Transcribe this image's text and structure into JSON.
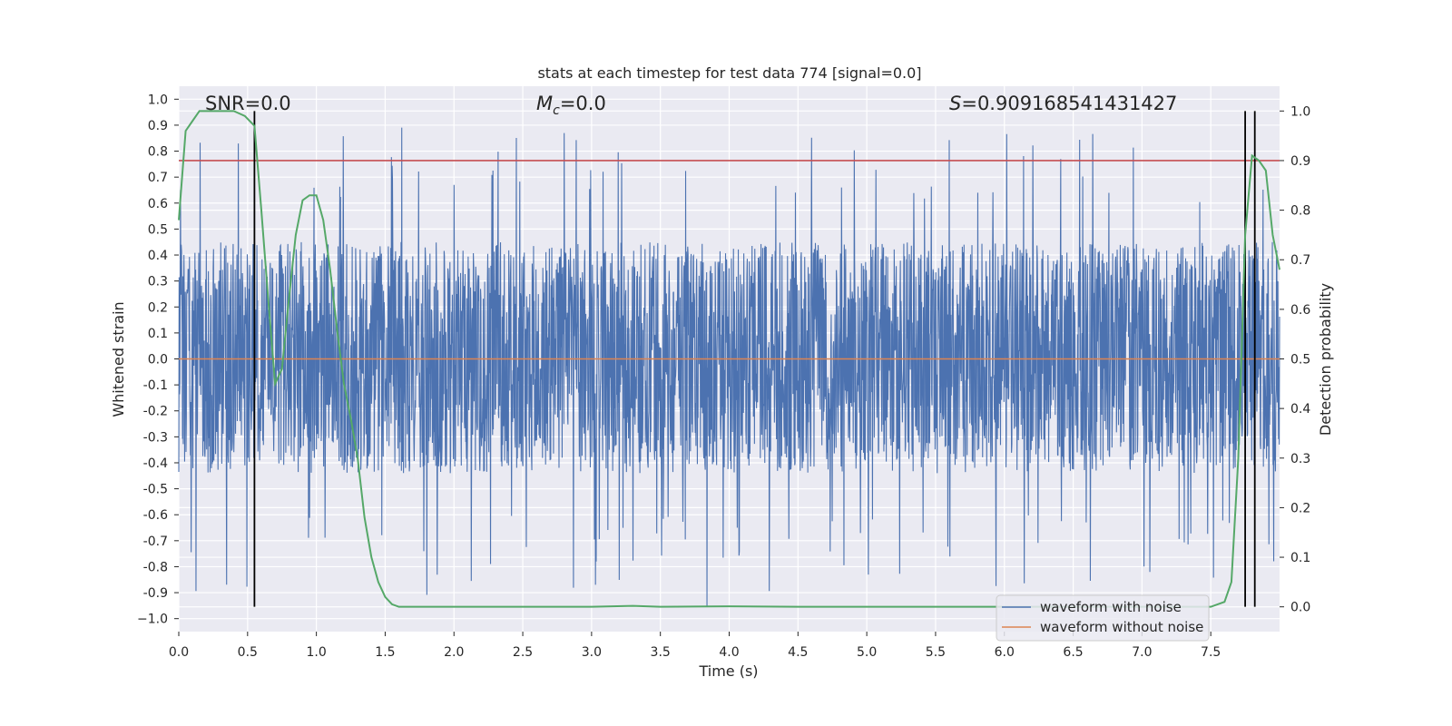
{
  "chart_data": {
    "type": "line",
    "title": "stats at each timestep for test data 774 [signal=0.0]",
    "xlabel": "Time (s)",
    "ylabel": "Whitened strain",
    "y2label": "Detection probability",
    "xlim": [
      0.0,
      8.0
    ],
    "ylim": [
      -1.05,
      1.05
    ],
    "y2lim": [
      -0.05,
      1.05
    ],
    "x_ticks": [
      "0.0",
      "0.5",
      "1.0",
      "1.5",
      "2.0",
      "2.5",
      "3.0",
      "3.5",
      "4.0",
      "4.5",
      "5.0",
      "5.5",
      "6.0",
      "6.5",
      "7.0",
      "7.5"
    ],
    "x_tick_values": [
      0.0,
      0.5,
      1.0,
      1.5,
      2.0,
      2.5,
      3.0,
      3.5,
      4.0,
      4.5,
      5.0,
      5.5,
      6.0,
      6.5,
      7.0,
      7.5
    ],
    "y_ticks": [
      "1.0",
      "0.9",
      "0.8",
      "0.7",
      "0.6",
      "0.5",
      "0.4",
      "0.3",
      "0.2",
      "0.1",
      "0.0",
      "-0.1",
      "-0.2",
      "-0.3",
      "-0.4",
      "-0.5",
      "-0.6",
      "-0.7",
      "-0.8",
      "-0.9",
      "−1.0"
    ],
    "y_tick_values": [
      1.0,
      0.9,
      0.8,
      0.7,
      0.6,
      0.5,
      0.4,
      0.3,
      0.2,
      0.1,
      0.0,
      -0.1,
      -0.2,
      -0.3,
      -0.4,
      -0.5,
      -0.6,
      -0.7,
      -0.8,
      -0.9,
      -1.0
    ],
    "y2_ticks": [
      "1.0",
      "0.9",
      "0.8",
      "0.7",
      "0.6",
      "0.5",
      "0.4",
      "0.3",
      "0.2",
      "0.1",
      "0.0"
    ],
    "y2_tick_values": [
      1.0,
      0.9,
      0.8,
      0.7,
      0.6,
      0.5,
      0.4,
      0.3,
      0.2,
      0.1,
      0.0
    ],
    "annotations": {
      "snr": "SNR=0.0",
      "mc_symbol": "M",
      "mc_subscript": "c",
      "mc_value": "=0.0",
      "s_symbol": "S",
      "s_value": "=0.909168541431427"
    },
    "threshold_y2": 0.9,
    "vertical_lines_x": [
      0.55,
      7.75,
      7.82
    ],
    "series": [
      {
        "name": "waveform with noise",
        "color": "#4c72b0",
        "description": "dense noise, approx uniform within [-0.55, 0.6] with occasional spikes to ±0.95"
      },
      {
        "name": "waveform without noise",
        "color": "#dd8452",
        "values_const": 0.0
      },
      {
        "name": "detection probability",
        "color": "#55a868",
        "axis": "y2",
        "x": [
          0.0,
          0.05,
          0.1,
          0.15,
          0.2,
          0.3,
          0.4,
          0.48,
          0.55,
          0.6,
          0.65,
          0.7,
          0.75,
          0.8,
          0.85,
          0.9,
          0.95,
          1.0,
          1.05,
          1.1,
          1.15,
          1.2,
          1.25,
          1.3,
          1.35,
          1.4,
          1.45,
          1.5,
          1.55,
          1.6,
          1.65,
          2.0,
          3.0,
          3.3,
          3.5,
          4.0,
          4.5,
          5.0,
          6.0,
          7.0,
          7.5,
          7.6,
          7.65,
          7.7,
          7.75,
          7.8,
          7.85,
          7.9,
          7.95,
          8.0
        ],
        "values": [
          0.78,
          0.96,
          0.98,
          1.0,
          1.0,
          1.0,
          1.0,
          0.99,
          0.97,
          0.8,
          0.62,
          0.45,
          0.48,
          0.62,
          0.75,
          0.82,
          0.83,
          0.83,
          0.78,
          0.68,
          0.56,
          0.45,
          0.38,
          0.3,
          0.18,
          0.1,
          0.05,
          0.02,
          0.005,
          0.0,
          0.0,
          0.0,
          0.0,
          0.002,
          0.0,
          0.001,
          0.0,
          0.0,
          0.0,
          0.0,
          0.0,
          0.01,
          0.05,
          0.3,
          0.75,
          0.91,
          0.9,
          0.88,
          0.75,
          0.68
        ]
      }
    ],
    "legend": {
      "location": "lower-right",
      "entries": [
        {
          "label": "waveform with noise",
          "color": "#4c72b0"
        },
        {
          "label": "waveform without noise",
          "color": "#dd8452"
        }
      ]
    },
    "colors": {
      "background": "#eaeaf2",
      "grid": "#ffffff",
      "threshold": "#c44e52",
      "vline": "#000000"
    }
  }
}
